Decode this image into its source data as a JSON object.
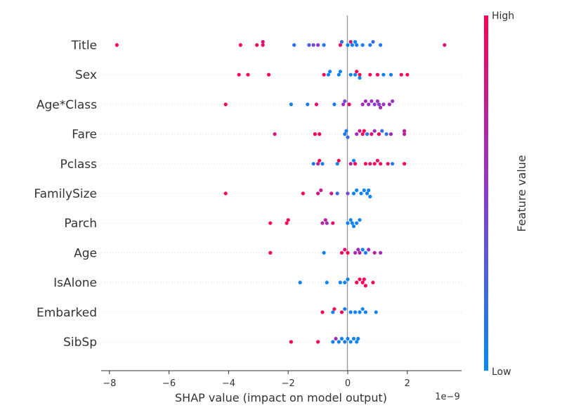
{
  "chart_data": {
    "type": "scatter",
    "subtype": "shap-beeswarm",
    "xlabel": "SHAP value (impact on model output)",
    "x_scale_label": "1e−9",
    "xlim": [
      -8.3,
      3.8
    ],
    "xticks": [
      {
        "value": -8,
        "label": "−8"
      },
      {
        "value": -6,
        "label": "−6"
      },
      {
        "value": -4,
        "label": "−4"
      },
      {
        "value": -2,
        "label": "−2"
      },
      {
        "value": 0,
        "label": "0"
      },
      {
        "value": 2,
        "label": "2"
      }
    ],
    "colorbar": {
      "title": "Feature value",
      "high_label": "High",
      "low_label": "Low",
      "low_color": "#008bfb",
      "mid_color": "#8b3ad0",
      "high_color": "#ff0052"
    },
    "features": [
      {
        "name": "Title",
        "points": [
          {
            "x": -7.75,
            "c": 1.0
          },
          {
            "x": -3.6,
            "c": 1.0
          },
          {
            "x": -3.05,
            "c": 0.95
          },
          {
            "x": -2.85,
            "c": 0.9
          },
          {
            "x": -2.85,
            "c": 0.85
          },
          {
            "x": -1.8,
            "c": 0.15
          },
          {
            "x": -1.3,
            "c": 0.3
          },
          {
            "x": -1.15,
            "c": 0.4
          },
          {
            "x": -1.0,
            "c": 0.5
          },
          {
            "x": -0.8,
            "c": 0.1
          },
          {
            "x": -0.25,
            "c": 0.9
          },
          {
            "x": -0.2,
            "c": 0.2
          },
          {
            "x": 0.0,
            "c": 0.05
          },
          {
            "x": 0.1,
            "c": 0.8
          },
          {
            "x": 0.15,
            "c": 0.05
          },
          {
            "x": 0.25,
            "c": 0.0
          },
          {
            "x": 0.3,
            "c": 0.1
          },
          {
            "x": 0.5,
            "c": 0.05
          },
          {
            "x": 0.75,
            "c": 0.1
          },
          {
            "x": 0.85,
            "c": 0.2
          },
          {
            "x": 1.1,
            "c": 0.1
          },
          {
            "x": 3.25,
            "c": 0.85
          }
        ]
      },
      {
        "name": "Sex",
        "points": [
          {
            "x": -3.65,
            "c": 1.0
          },
          {
            "x": -3.35,
            "c": 1.0
          },
          {
            "x": -2.65,
            "c": 1.0
          },
          {
            "x": -0.8,
            "c": 1.0
          },
          {
            "x": -0.65,
            "c": 0.05
          },
          {
            "x": -0.6,
            "c": 0.05
          },
          {
            "x": -0.3,
            "c": 0.05
          },
          {
            "x": -0.25,
            "c": 0.05
          },
          {
            "x": 0.1,
            "c": 0.05
          },
          {
            "x": 0.25,
            "c": 0.05
          },
          {
            "x": 0.3,
            "c": 1.0
          },
          {
            "x": 0.4,
            "c": 1.0
          },
          {
            "x": 0.4,
            "c": 0.05
          },
          {
            "x": 0.75,
            "c": 1.0
          },
          {
            "x": 1.0,
            "c": 1.0
          },
          {
            "x": 1.2,
            "c": 0.05
          },
          {
            "x": 1.45,
            "c": 0.05
          },
          {
            "x": 1.8,
            "c": 1.0
          },
          {
            "x": 2.0,
            "c": 1.0
          }
        ]
      },
      {
        "name": "Age*Class",
        "points": [
          {
            "x": -4.1,
            "c": 1.0
          },
          {
            "x": -1.9,
            "c": 0.05
          },
          {
            "x": -1.35,
            "c": 0.1
          },
          {
            "x": -1.05,
            "c": 0.9
          },
          {
            "x": -0.45,
            "c": 0.1
          },
          {
            "x": -0.15,
            "c": 0.6
          },
          {
            "x": -0.1,
            "c": 0.4
          },
          {
            "x": 0.05,
            "c": 0.9
          },
          {
            "x": 0.5,
            "c": 0.6
          },
          {
            "x": 0.6,
            "c": 0.6
          },
          {
            "x": 0.7,
            "c": 0.55
          },
          {
            "x": 0.8,
            "c": 0.6
          },
          {
            "x": 0.9,
            "c": 0.5
          },
          {
            "x": 1.0,
            "c": 0.55
          },
          {
            "x": 1.05,
            "c": 0.5
          },
          {
            "x": 1.1,
            "c": 0.6
          },
          {
            "x": 1.2,
            "c": 0.55
          },
          {
            "x": 1.4,
            "c": 0.6
          },
          {
            "x": 1.5,
            "c": 0.55
          }
        ]
      },
      {
        "name": "Fare",
        "points": [
          {
            "x": -2.45,
            "c": 0.8
          },
          {
            "x": -1.1,
            "c": 1.0
          },
          {
            "x": -0.95,
            "c": 1.0
          },
          {
            "x": -0.1,
            "c": 0.1
          },
          {
            "x": -0.05,
            "c": 0.1
          },
          {
            "x": 0.0,
            "c": 0.2
          },
          {
            "x": 0.3,
            "c": 0.6
          },
          {
            "x": 0.4,
            "c": 0.8
          },
          {
            "x": 0.5,
            "c": 0.9
          },
          {
            "x": 0.55,
            "c": 1.0
          },
          {
            "x": 0.65,
            "c": 0.15
          },
          {
            "x": 0.8,
            "c": 0.85
          },
          {
            "x": 0.9,
            "c": 0.6
          },
          {
            "x": 1.05,
            "c": 1.0
          },
          {
            "x": 1.15,
            "c": 0.2
          },
          {
            "x": 1.3,
            "c": 0.15
          },
          {
            "x": 1.45,
            "c": 0.6
          },
          {
            "x": 1.9,
            "c": 0.7
          },
          {
            "x": 1.9,
            "c": 0.7
          }
        ]
      },
      {
        "name": "Pclass",
        "points": [
          {
            "x": -1.15,
            "c": 0.1
          },
          {
            "x": -1.0,
            "c": 0.7
          },
          {
            "x": -0.95,
            "c": 1.0
          },
          {
            "x": -0.85,
            "c": 0.1
          },
          {
            "x": -0.35,
            "c": 0.05
          },
          {
            "x": -0.3,
            "c": 1.0
          },
          {
            "x": 0.1,
            "c": 0.7
          },
          {
            "x": 0.2,
            "c": 0.05
          },
          {
            "x": 0.25,
            "c": 1.0
          },
          {
            "x": 0.6,
            "c": 1.0
          },
          {
            "x": 0.75,
            "c": 0.9
          },
          {
            "x": 0.9,
            "c": 1.0
          },
          {
            "x": 1.0,
            "c": 0.95
          },
          {
            "x": 1.1,
            "c": 1.0
          },
          {
            "x": 1.35,
            "c": 0.9
          },
          {
            "x": 1.5,
            "c": 0.1
          },
          {
            "x": 1.9,
            "c": 1.0
          }
        ]
      },
      {
        "name": "FamilySize",
        "points": [
          {
            "x": -4.1,
            "c": 1.0
          },
          {
            "x": -1.5,
            "c": 1.0
          },
          {
            "x": -1.0,
            "c": 0.8
          },
          {
            "x": -0.9,
            "c": 0.75
          },
          {
            "x": -0.55,
            "c": 0.8
          },
          {
            "x": -0.35,
            "c": 0.2
          },
          {
            "x": 0.0,
            "c": 0.4
          },
          {
            "x": 0.2,
            "c": 0.05
          },
          {
            "x": 0.3,
            "c": 0.05
          },
          {
            "x": 0.45,
            "c": 0.05
          },
          {
            "x": 0.55,
            "c": 0.05
          },
          {
            "x": 0.65,
            "c": 0.05
          },
          {
            "x": 0.7,
            "c": 0.05
          },
          {
            "x": 0.75,
            "c": 0.05
          }
        ]
      },
      {
        "name": "Parch",
        "points": [
          {
            "x": -2.6,
            "c": 1.0
          },
          {
            "x": -2.05,
            "c": 1.0
          },
          {
            "x": -2.0,
            "c": 1.0
          },
          {
            "x": -0.85,
            "c": 0.7
          },
          {
            "x": -0.75,
            "c": 0.7
          },
          {
            "x": -0.7,
            "c": 0.6
          },
          {
            "x": -0.5,
            "c": 0.9
          },
          {
            "x": 0.0,
            "c": 0.05
          },
          {
            "x": 0.1,
            "c": 0.05
          },
          {
            "x": 0.15,
            "c": 0.05
          },
          {
            "x": 0.2,
            "c": 0.05
          },
          {
            "x": 0.3,
            "c": 0.05
          },
          {
            "x": 0.4,
            "c": 0.05
          }
        ]
      },
      {
        "name": "Age",
        "points": [
          {
            "x": -2.6,
            "c": 1.0
          },
          {
            "x": -0.8,
            "c": 0.05
          },
          {
            "x": -0.2,
            "c": 1.0
          },
          {
            "x": -0.1,
            "c": 0.9
          },
          {
            "x": 0.0,
            "c": 1.0
          },
          {
            "x": 0.25,
            "c": 0.6
          },
          {
            "x": 0.35,
            "c": 0.6
          },
          {
            "x": 0.4,
            "c": 0.7
          },
          {
            "x": 0.5,
            "c": 0.05
          },
          {
            "x": 0.6,
            "c": 0.1
          },
          {
            "x": 0.7,
            "c": 0.6
          },
          {
            "x": 0.9,
            "c": 0.7
          },
          {
            "x": 1.1,
            "c": 0.6
          }
        ]
      },
      {
        "name": "IsAlone",
        "points": [
          {
            "x": -1.6,
            "c": 0.05
          },
          {
            "x": -0.7,
            "c": 0.05
          },
          {
            "x": -0.25,
            "c": 0.05
          },
          {
            "x": -0.1,
            "c": 0.05
          },
          {
            "x": 0.0,
            "c": 0.05
          },
          {
            "x": 0.3,
            "c": 1.0
          },
          {
            "x": 0.4,
            "c": 1.0
          },
          {
            "x": 0.5,
            "c": 1.0
          },
          {
            "x": 0.55,
            "c": 1.0
          },
          {
            "x": 0.6,
            "c": 1.0
          },
          {
            "x": 0.85,
            "c": 1.0
          }
        ]
      },
      {
        "name": "Embarked",
        "points": [
          {
            "x": -0.85,
            "c": 1.0
          },
          {
            "x": -0.5,
            "c": 0.05
          },
          {
            "x": -0.45,
            "c": 1.0
          },
          {
            "x": -0.2,
            "c": 1.0
          },
          {
            "x": -0.1,
            "c": 0.05
          },
          {
            "x": 0.1,
            "c": 0.05
          },
          {
            "x": 0.25,
            "c": 0.05
          },
          {
            "x": 0.4,
            "c": 0.05
          },
          {
            "x": 0.5,
            "c": 0.05
          },
          {
            "x": 0.6,
            "c": 0.05
          },
          {
            "x": 0.95,
            "c": 0.05
          }
        ]
      },
      {
        "name": "SibSp",
        "points": [
          {
            "x": -1.9,
            "c": 1.0
          },
          {
            "x": -1.0,
            "c": 1.0
          },
          {
            "x": -0.5,
            "c": 0.05
          },
          {
            "x": -0.4,
            "c": 0.6
          },
          {
            "x": -0.3,
            "c": 0.05
          },
          {
            "x": -0.2,
            "c": 0.05
          },
          {
            "x": -0.1,
            "c": 0.1
          },
          {
            "x": 0.0,
            "c": 0.05
          },
          {
            "x": 0.1,
            "c": 0.05
          },
          {
            "x": 0.2,
            "c": 0.05
          },
          {
            "x": 0.3,
            "c": 0.05
          },
          {
            "x": 0.35,
            "c": 0.05
          }
        ]
      }
    ]
  }
}
